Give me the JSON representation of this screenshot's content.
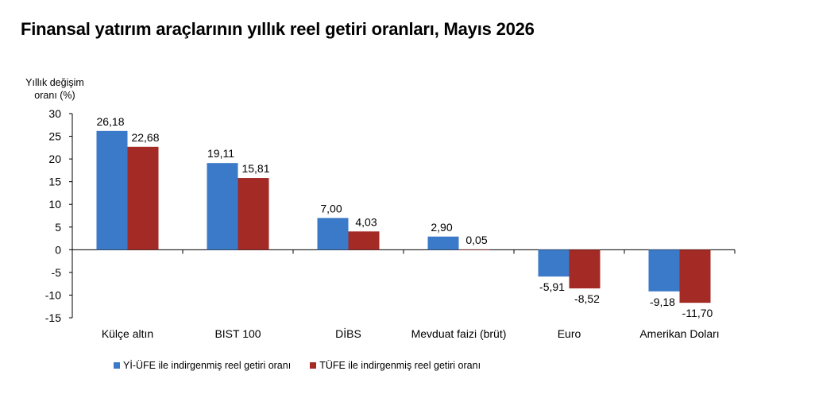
{
  "title": "Finansal yatırım araçlarının yıllık reel getiri oranları, Mayıs 2026",
  "colors": {
    "series1": "#3b7ac9",
    "series2": "#a32a25",
    "axis": "#000000",
    "text": "#000000"
  },
  "chart_data": {
    "type": "bar",
    "ylabel_line1": "Yıllık değişim",
    "ylabel_line2": "oranı (%)",
    "ylim": [
      -15,
      30
    ],
    "yticks": [
      30,
      25,
      20,
      15,
      10,
      5,
      0,
      -5,
      -10,
      -15
    ],
    "grid": false,
    "legend_position": "bottom",
    "categories": [
      "Külçe altın",
      "BIST 100",
      "DİBS",
      "Mevduat faizi (brüt)",
      "Euro",
      "Amerikan Doları"
    ],
    "series": [
      {
        "name": "Yİ-ÜFE ile indirgenmiş reel getiri oranı",
        "values": [
          26.18,
          19.11,
          7.0,
          2.9,
          -5.91,
          -9.18
        ],
        "labels": [
          "26,18",
          "19,11",
          "7,00",
          "2,90",
          "-5,91",
          "-9,18"
        ]
      },
      {
        "name": "TÜFE ile indirgenmiş reel getiri oranı",
        "values": [
          22.68,
          15.81,
          4.03,
          0.05,
          -8.52,
          -11.7
        ],
        "labels": [
          "22,68",
          "15,81",
          "4,03",
          "0,05",
          "-8,52",
          "-11,70"
        ]
      }
    ]
  }
}
